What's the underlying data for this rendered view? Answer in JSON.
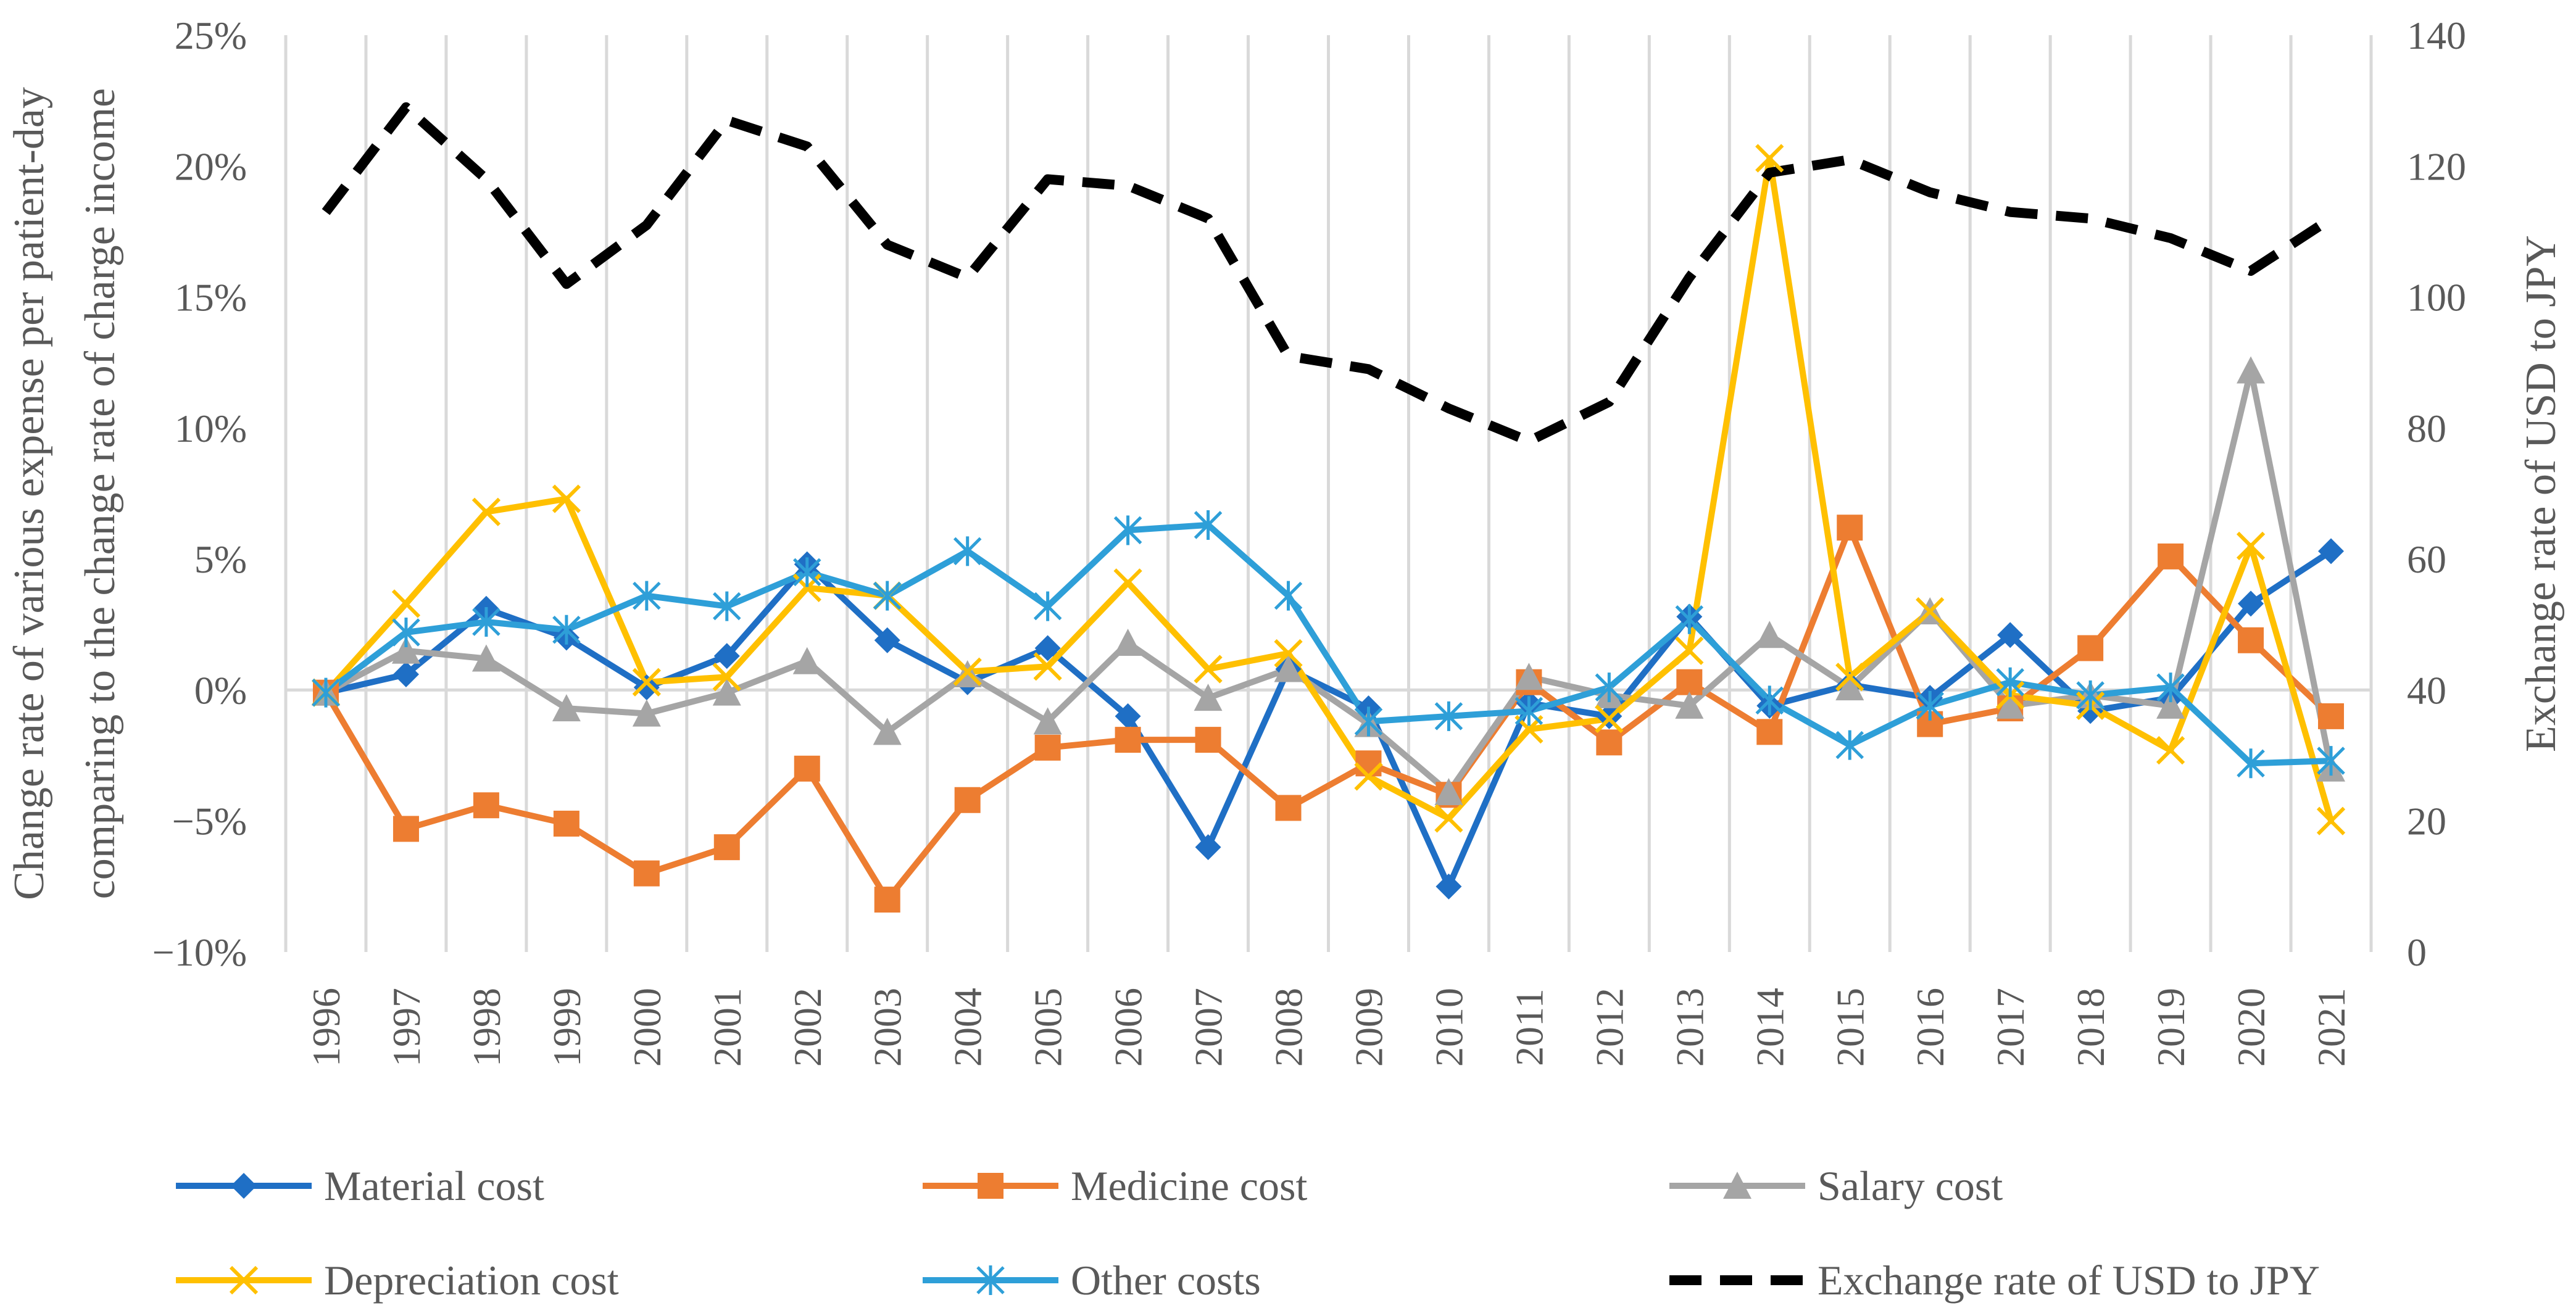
{
  "chart_data": {
    "type": "line",
    "x": [
      "1996",
      "1997",
      "1998",
      "1999",
      "2000",
      "2001",
      "2002",
      "2003",
      "2004",
      "2005",
      "2006",
      "2007",
      "2008",
      "2009",
      "2010",
      "2011",
      "2012",
      "2013",
      "2014",
      "2015",
      "2016",
      "2017",
      "2018",
      "2019",
      "2020",
      "2021"
    ],
    "left_axis": {
      "title_line1": "Change  rate of various expense per patient-day",
      "title_line2": "comparing to the change rate of charge income",
      "range": [
        -10,
        25
      ],
      "ticks": [
        25,
        20,
        15,
        10,
        5,
        0,
        -5,
        -10
      ],
      "tick_labels": [
        "25%",
        "20%",
        "15%",
        "10%",
        "5%",
        "0%",
        "−5%",
        "−10%"
      ]
    },
    "right_axis": {
      "title": "Exchange rate of USD to JPY",
      "range": [
        0,
        140
      ],
      "ticks": [
        140,
        120,
        100,
        80,
        60,
        40,
        20,
        0
      ],
      "tick_labels": [
        "140",
        "120",
        "100",
        "80",
        "60",
        "40",
        "20",
        "0"
      ]
    },
    "grid": "vertical",
    "legend_position": "bottom",
    "series": [
      {
        "name": "Material cost",
        "axis": "left",
        "marker": "diamond",
        "color": "#1f6fc5",
        "values": [
          -0.1,
          0.6,
          3.1,
          2.0,
          0.1,
          1.3,
          4.8,
          1.9,
          0.3,
          1.6,
          -1.0,
          -6.0,
          0.8,
          -0.7,
          -7.5,
          -0.5,
          -1.0,
          2.8,
          -0.6,
          0.2,
          -0.3,
          2.1,
          -0.8,
          -0.3,
          3.3,
          5.3
        ]
      },
      {
        "name": "Medicine cost",
        "axis": "left",
        "marker": "square",
        "color": "#ed7d31",
        "values": [
          -0.1,
          -5.3,
          -4.4,
          -5.1,
          -7.0,
          -6.0,
          -3.0,
          -8.0,
          -4.2,
          -2.2,
          -1.9,
          -1.9,
          -4.5,
          -2.8,
          -4.0,
          0.3,
          -2.0,
          0.3,
          -1.6,
          6.2,
          -1.3,
          -0.7,
          1.6,
          5.1,
          1.9,
          -1.0
        ]
      },
      {
        "name": "Salary cost",
        "axis": "left",
        "marker": "triangle",
        "color": "#a5a5a5",
        "values": [
          -0.1,
          1.5,
          1.2,
          -0.7,
          -0.9,
          -0.1,
          1.1,
          -1.6,
          0.6,
          -1.2,
          1.8,
          -0.3,
          0.8,
          -1.3,
          -3.9,
          0.5,
          -0.2,
          -0.6,
          2.1,
          0.1,
          3.0,
          -0.6,
          -0.2,
          -0.6,
          12.2,
          -3.0
        ]
      },
      {
        "name": "Depreciation cost",
        "axis": "left",
        "marker": "x",
        "color": "#ffc000",
        "values": [
          -0.1,
          3.3,
          6.8,
          7.3,
          0.3,
          0.5,
          3.9,
          3.6,
          0.7,
          0.9,
          4.1,
          0.8,
          1.4,
          -3.3,
          -4.9,
          -1.5,
          -1.1,
          1.5,
          20.3,
          0.5,
          3.0,
          -0.2,
          -0.6,
          -2.3,
          5.5,
          -5.0
        ]
      },
      {
        "name": "Other costs",
        "axis": "left",
        "marker": "star",
        "color": "#2e9fd8",
        "values": [
          -0.1,
          2.2,
          2.6,
          2.3,
          3.6,
          3.2,
          4.5,
          3.6,
          5.3,
          3.2,
          6.1,
          6.3,
          3.6,
          -1.2,
          -1.0,
          -0.8,
          0.1,
          2.7,
          -0.4,
          -2.1,
          -0.6,
          0.3,
          -0.2,
          0.1,
          -2.8,
          -2.7
        ]
      },
      {
        "name": "Exchange rate of USD to JPY",
        "axis": "right",
        "marker": "none",
        "style": "dashed",
        "color": "#000000",
        "values": [
          113,
          129,
          118,
          102,
          111,
          127,
          123,
          108,
          103,
          118,
          117,
          112,
          91,
          89,
          83,
          78,
          84,
          103,
          119,
          121,
          116,
          113,
          112,
          109,
          104,
          112
        ]
      }
    ]
  }
}
